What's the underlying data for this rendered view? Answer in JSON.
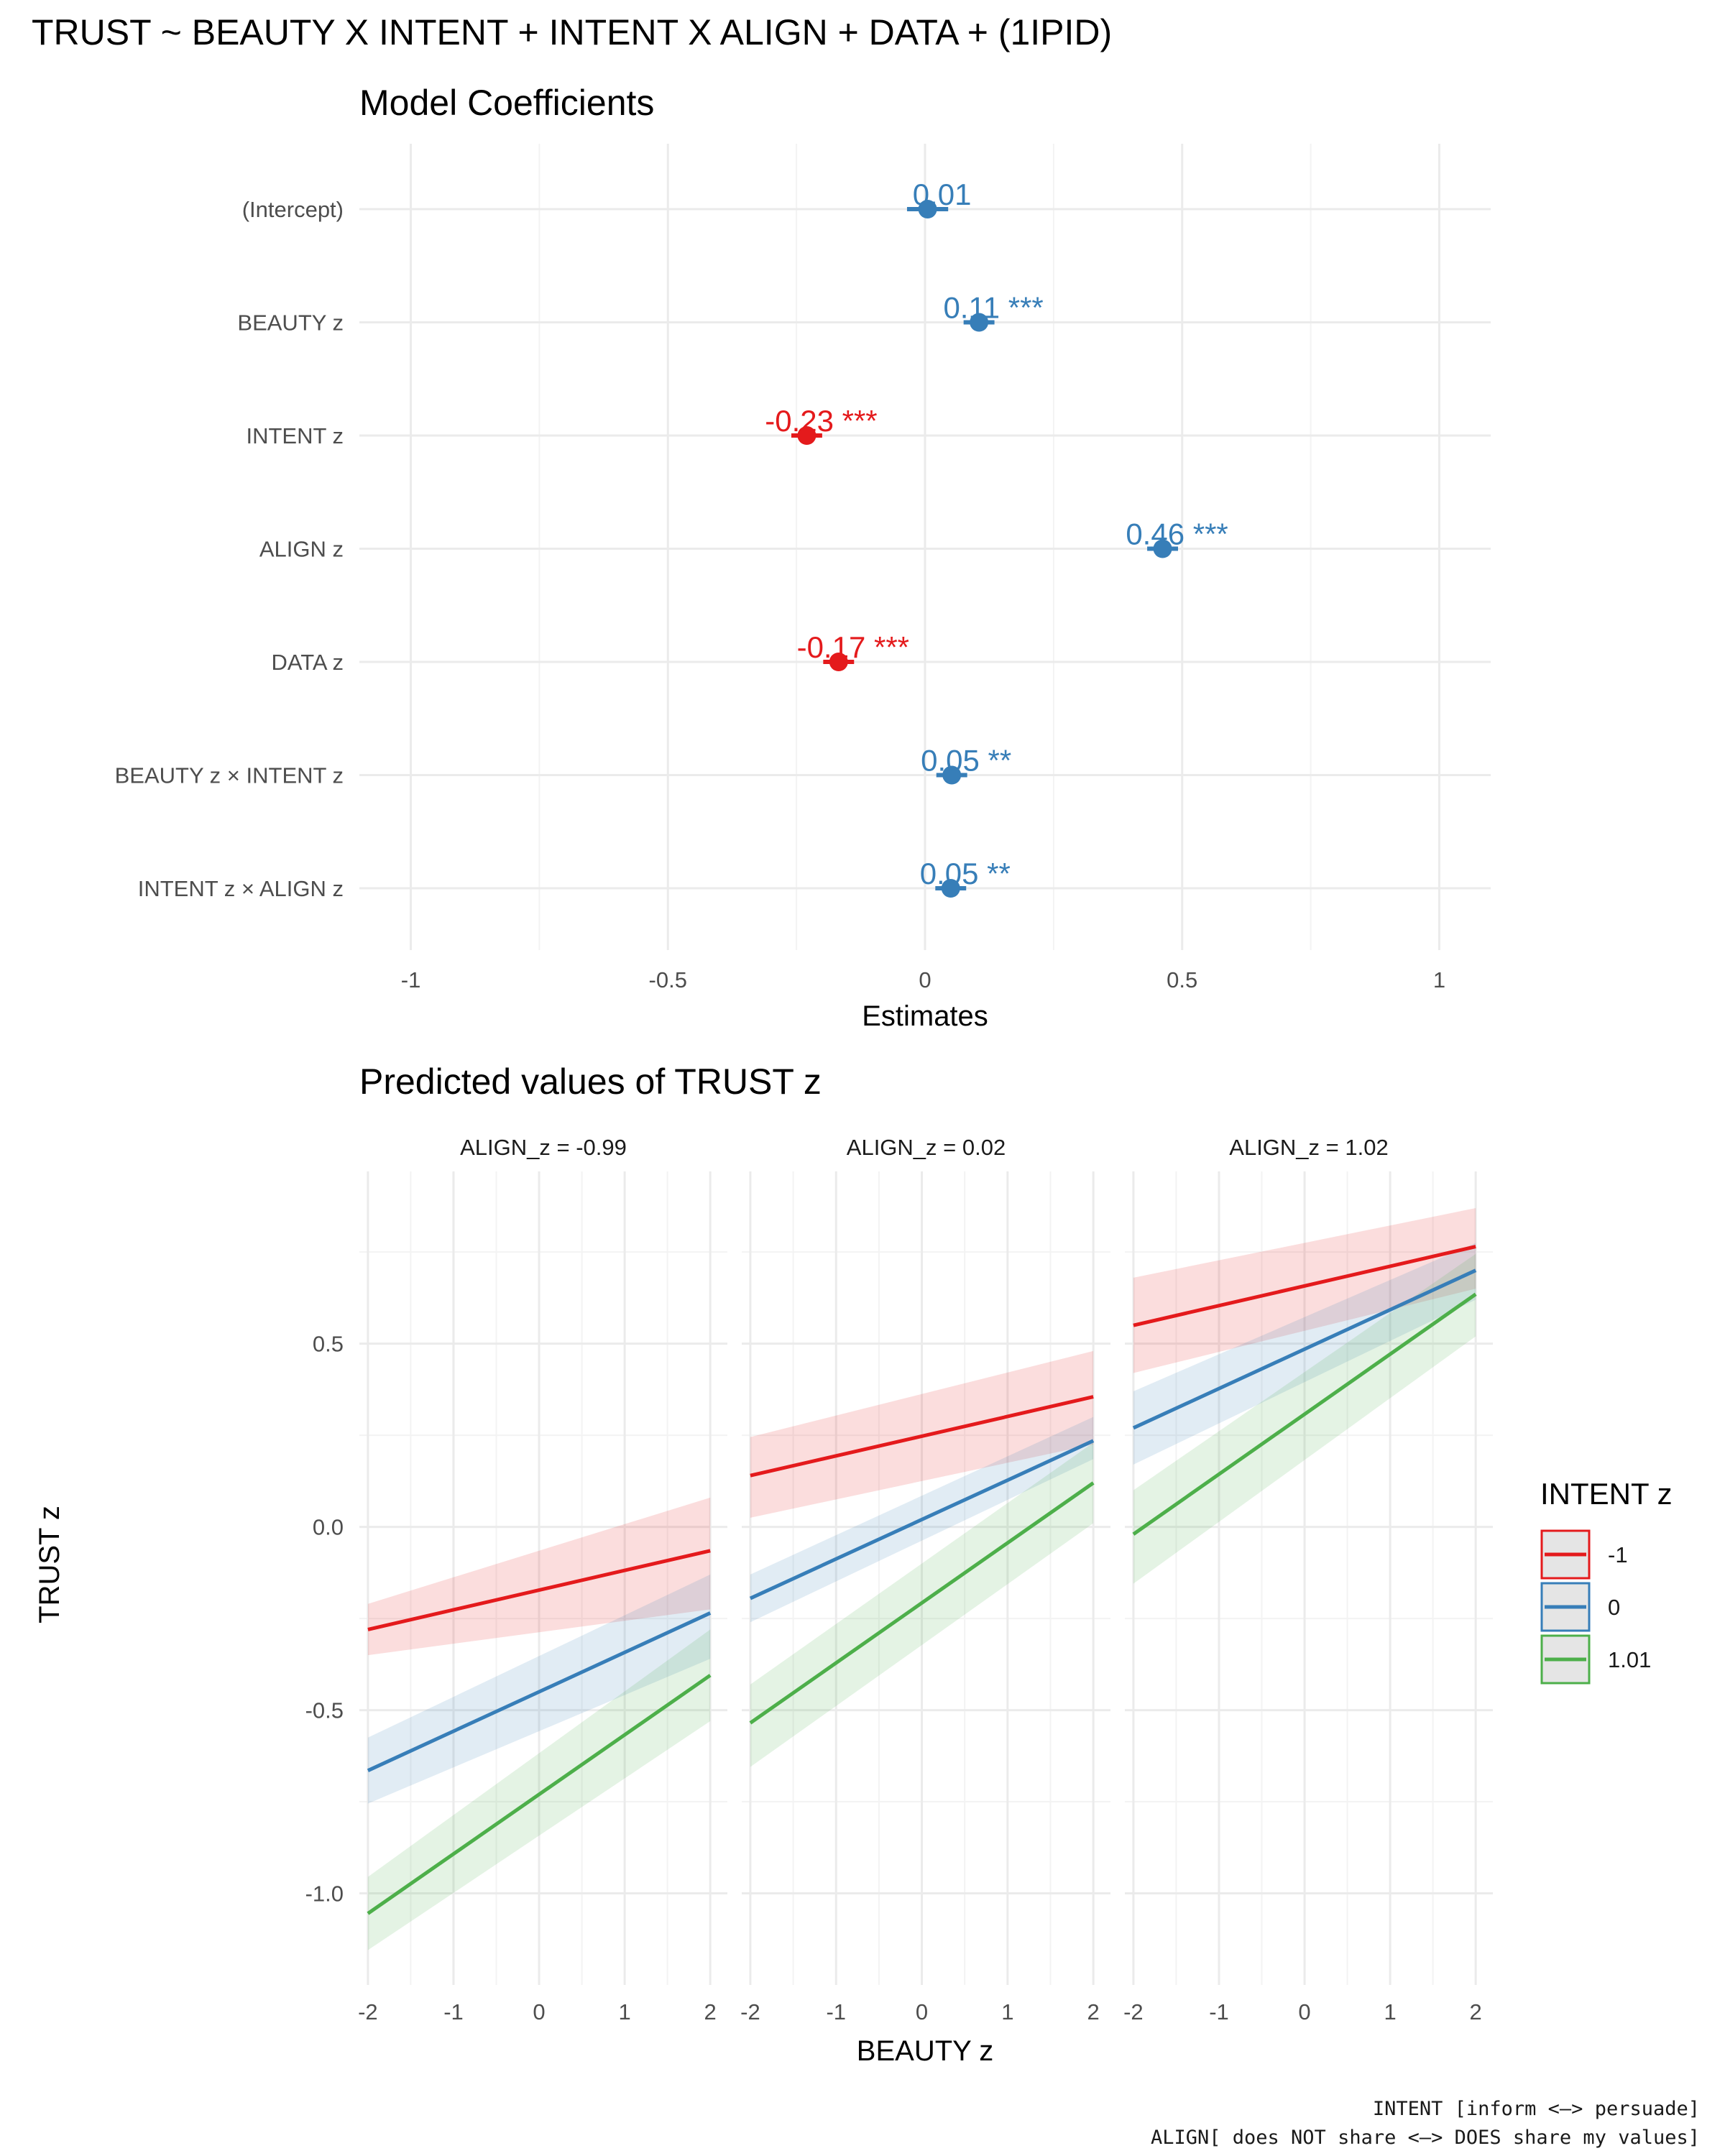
{
  "title": "TRUST ~ BEAUTY X INTENT + INTENT X ALIGN + DATA + (1IPID)",
  "colors": {
    "negative": "#e41a1c",
    "positive": "#377eb8",
    "green": "#4daf4a",
    "grid": "#ebebeb"
  },
  "chart_data": [
    {
      "type": "scatter",
      "title": "Model Coefficients",
      "xlabel": "Estimates",
      "xlim": [
        -1.1,
        1.1
      ],
      "xticks": [
        -1,
        -0.5,
        0,
        0.5,
        1
      ],
      "xtick_labels": [
        "-1",
        "-0.5",
        "0",
        "0.5",
        "1"
      ],
      "grid": true,
      "terms": [
        {
          "label": "(Intercept)",
          "estimate": 0.005,
          "ci": [
            -0.035,
            0.045
          ],
          "text": "0.01",
          "sign": "positive"
        },
        {
          "label": "BEAUTY z",
          "estimate": 0.105,
          "ci": [
            0.075,
            0.135
          ],
          "text": "0.11 ***",
          "sign": "positive"
        },
        {
          "label": "INTENT z",
          "estimate": -0.23,
          "ci": [
            -0.26,
            -0.2
          ],
          "text": "-0.23 ***",
          "sign": "negative"
        },
        {
          "label": "ALIGN z",
          "estimate": 0.462,
          "ci": [
            0.432,
            0.492
          ],
          "text": "0.46 ***",
          "sign": "positive"
        },
        {
          "label": "DATA z",
          "estimate": -0.168,
          "ci": [
            -0.198,
            -0.138
          ],
          "text": "-0.17 ***",
          "sign": "negative"
        },
        {
          "label": "BEAUTY z × INTENT z",
          "estimate": 0.052,
          "ci": [
            0.022,
            0.082
          ],
          "text": "0.05 **",
          "sign": "positive"
        },
        {
          "label": "INTENT z × ALIGN z",
          "estimate": 0.05,
          "ci": [
            0.02,
            0.08
          ],
          "text": "0.05 **",
          "sign": "positive"
        }
      ]
    },
    {
      "type": "line",
      "title": "Predicted values of TRUST z",
      "xlabel": "BEAUTY z",
      "ylabel": "TRUST z",
      "xlim": [
        -2.1,
        2.2
      ],
      "ylim": [
        -1.25,
        0.97
      ],
      "xticks": [
        -2,
        -1,
        0,
        1,
        2
      ],
      "xtick_labels": [
        "-2",
        "-1",
        "0",
        "1",
        "2"
      ],
      "yticks": [
        0.5,
        0.0,
        -0.5,
        -1.0
      ],
      "ytick_labels": [
        "0.5",
        "0.0",
        "-0.5",
        "-1.0"
      ],
      "grid": true,
      "legend": {
        "title": "INTENT z",
        "position": "right"
      },
      "series": [
        {
          "name": "-1",
          "color": "#e41a1c"
        },
        {
          "name": "0",
          "color": "#377eb8"
        },
        {
          "name": "1.01",
          "color": "#4daf4a"
        }
      ],
      "facets": [
        {
          "label": "ALIGN_z = -0.99",
          "lines": [
            {
              "series": "-1",
              "x": [
                -2,
                2
              ],
              "y": [
                -0.28,
                -0.065
              ],
              "lower": [
                -0.35,
                -0.225
              ],
              "upper": [
                -0.21,
                0.08
              ]
            },
            {
              "series": "0",
              "x": [
                -2,
                2
              ],
              "y": [
                -0.665,
                -0.235
              ],
              "lower": [
                -0.755,
                -0.36
              ],
              "upper": [
                -0.575,
                -0.13
              ]
            },
            {
              "series": "1.01",
              "x": [
                -2,
                2
              ],
              "y": [
                -1.055,
                -0.405
              ],
              "lower": [
                -1.155,
                -0.53
              ],
              "upper": [
                -0.955,
                -0.28
              ]
            }
          ]
        },
        {
          "label": "ALIGN_z = 0.02",
          "lines": [
            {
              "series": "-1",
              "x": [
                -2,
                2
              ],
              "y": [
                0.14,
                0.355
              ],
              "lower": [
                0.025,
                0.225
              ],
              "upper": [
                0.245,
                0.48
              ]
            },
            {
              "series": "0",
              "x": [
                -2,
                2
              ],
              "y": [
                -0.195,
                0.235
              ],
              "lower": [
                -0.26,
                0.185
              ],
              "upper": [
                -0.13,
                0.3
              ]
            },
            {
              "series": "1.01",
              "x": [
                -2,
                2
              ],
              "y": [
                -0.535,
                0.12
              ],
              "lower": [
                -0.655,
                0.01
              ],
              "upper": [
                -0.43,
                0.23
              ]
            }
          ]
        },
        {
          "label": "ALIGN_z = 1.02",
          "lines": [
            {
              "series": "-1",
              "x": [
                -2,
                2
              ],
              "y": [
                0.55,
                0.765
              ],
              "lower": [
                0.42,
                0.65
              ],
              "upper": [
                0.68,
                0.87
              ]
            },
            {
              "series": "0",
              "x": [
                -2,
                2
              ],
              "y": [
                0.27,
                0.7
              ],
              "lower": [
                0.17,
                0.62
              ],
              "upper": [
                0.37,
                0.775
              ]
            },
            {
              "series": "1.01",
              "x": [
                -2,
                2
              ],
              "y": [
                -0.02,
                0.635
              ],
              "lower": [
                -0.155,
                0.52
              ],
              "upper": [
                0.1,
                0.745
              ]
            }
          ]
        }
      ]
    }
  ],
  "caption": {
    "line1": "INTENT [inform <–> persuade]",
    "line2": "ALIGN[ does NOT share <–> DOES share my values]"
  }
}
